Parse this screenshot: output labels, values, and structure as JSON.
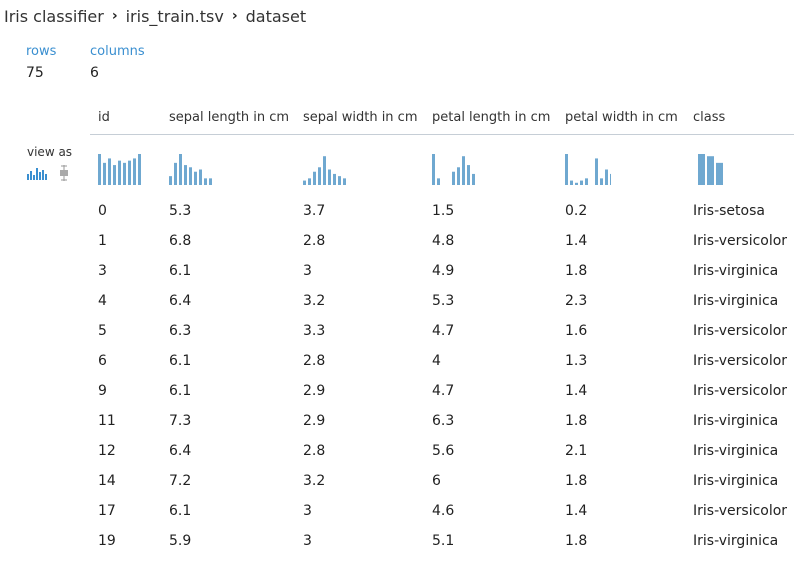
{
  "breadcrumb": [
    "Iris classifier",
    "iris_train.tsv",
    "dataset"
  ],
  "stats": {
    "rows_label": "rows",
    "rows_value": "75",
    "columns_label": "columns",
    "columns_value": "6"
  },
  "view_as": {
    "label": "view as",
    "icons": [
      "histogram-icon",
      "boxplot-icon"
    ]
  },
  "columns": [
    "id",
    "sepal length in cm",
    "sepal width in cm",
    "petal length in cm",
    "petal width in cm",
    "class"
  ],
  "histograms": [
    {
      "column": "id",
      "bars": [
        14,
        10,
        12,
        9,
        11,
        10,
        11,
        12,
        14
      ]
    },
    {
      "column": "sepal length in cm",
      "bars": [
        4,
        10,
        14,
        9,
        8,
        6,
        7,
        3,
        3
      ]
    },
    {
      "column": "sepal width in cm",
      "bars": [
        2,
        3,
        6,
        8,
        13,
        7,
        5,
        4,
        3
      ]
    },
    {
      "column": "petal length in cm",
      "bars": [
        14,
        3,
        0,
        0,
        6,
        8,
        13,
        9,
        5
      ]
    },
    {
      "column": "petal width in cm",
      "bars": [
        14,
        2,
        1,
        2,
        3,
        0,
        12,
        3,
        7,
        5
      ]
    },
    {
      "column": "class",
      "bars": [
        14,
        13,
        10
      ]
    }
  ],
  "colors": {
    "accent": "#3a8fd0",
    "bar": "#6fa8d0",
    "divider": "#c6ced6"
  },
  "rows": [
    [
      "0",
      "5.3",
      "3.7",
      "1.5",
      "0.2",
      "Iris-setosa"
    ],
    [
      "1",
      "6.8",
      "2.8",
      "4.8",
      "1.4",
      "Iris-versicolor"
    ],
    [
      "3",
      "6.1",
      "3",
      "4.9",
      "1.8",
      "Iris-virginica"
    ],
    [
      "4",
      "6.4",
      "3.2",
      "5.3",
      "2.3",
      "Iris-virginica"
    ],
    [
      "5",
      "6.3",
      "3.3",
      "4.7",
      "1.6",
      "Iris-versicolor"
    ],
    [
      "6",
      "6.1",
      "2.8",
      "4",
      "1.3",
      "Iris-versicolor"
    ],
    [
      "9",
      "6.1",
      "2.9",
      "4.7",
      "1.4",
      "Iris-versicolor"
    ],
    [
      "11",
      "7.3",
      "2.9",
      "6.3",
      "1.8",
      "Iris-virginica"
    ],
    [
      "12",
      "6.4",
      "2.8",
      "5.6",
      "2.1",
      "Iris-virginica"
    ],
    [
      "14",
      "7.2",
      "3.2",
      "6",
      "1.8",
      "Iris-virginica"
    ],
    [
      "17",
      "6.1",
      "3",
      "4.6",
      "1.4",
      "Iris-versicolor"
    ],
    [
      "19",
      "5.9",
      "3",
      "5.1",
      "1.8",
      "Iris-virginica"
    ]
  ]
}
